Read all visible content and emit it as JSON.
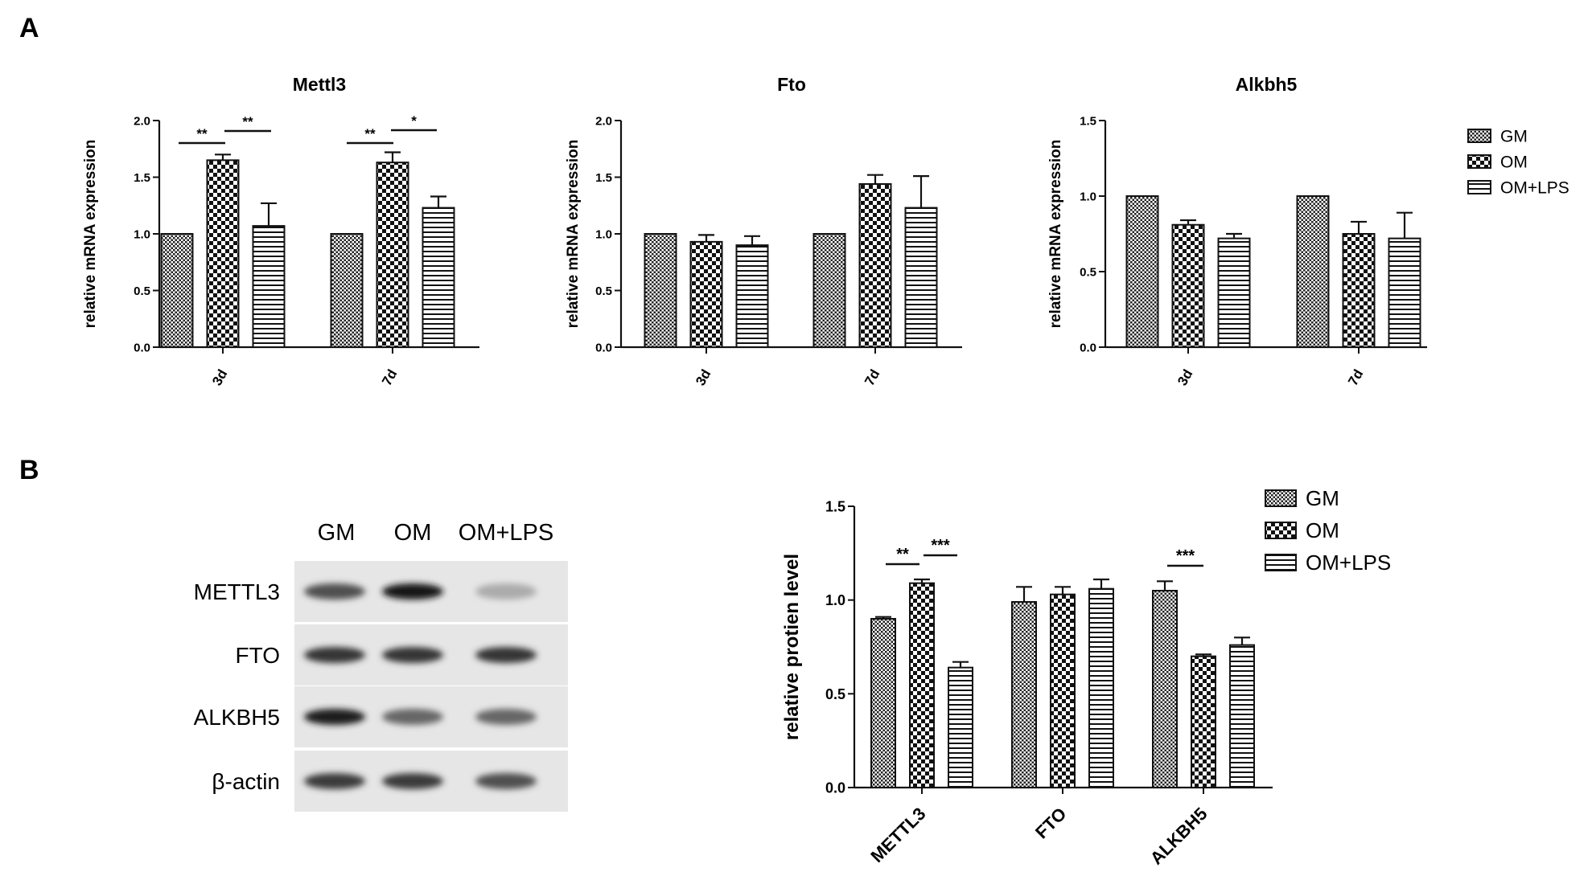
{
  "panel_labels": [
    "A",
    "B"
  ],
  "colors": {
    "ink": "#111111",
    "background": "#ffffff",
    "blot_bg": "#e6e6e6"
  },
  "legend": [
    "GM",
    "OM",
    "OM+LPS"
  ],
  "significance_marks": {
    "mettl3_3d": [
      "**",
      "**"
    ],
    "mettl3_7d": [
      "**",
      "*"
    ],
    "protein_METTL3": [
      "**",
      "***"
    ],
    "protein_ALKBH5": [
      "***"
    ]
  },
  "western_blot": {
    "lanes": [
      "GM",
      "OM",
      "OM+LPS"
    ],
    "rows": [
      {
        "label": "METTL3",
        "intensity": [
          0.72,
          1.0,
          0.3
        ]
      },
      {
        "label": "FTO",
        "intensity": [
          0.85,
          0.85,
          0.85
        ]
      },
      {
        "label": "ALKBH5",
        "intensity": [
          0.95,
          0.62,
          0.62
        ]
      },
      {
        "label": "β-actin",
        "intensity": [
          0.82,
          0.82,
          0.72
        ]
      }
    ]
  },
  "chart_data": [
    {
      "type": "bar",
      "title": "Mettl3",
      "xlabel": "",
      "ylabel": "relative mRNA expression",
      "ylim": [
        0,
        2.0
      ],
      "yticks": [
        "0.0",
        "0.5",
        "1.0",
        "1.5",
        "2.0"
      ],
      "categories": [
        "3d",
        "7d"
      ],
      "series": [
        {
          "name": "GM",
          "values": [
            1.0,
            1.0
          ],
          "errors": [
            0,
            0
          ]
        },
        {
          "name": "OM",
          "values": [
            1.65,
            1.63
          ],
          "errors": [
            0.05,
            0.09
          ]
        },
        {
          "name": "OM+LPS",
          "values": [
            1.07,
            1.23
          ],
          "errors": [
            0.2,
            0.1
          ]
        }
      ]
    },
    {
      "type": "bar",
      "title": "Fto",
      "xlabel": "",
      "ylabel": "relative mRNA expression",
      "ylim": [
        0,
        2.0
      ],
      "yticks": [
        "0.0",
        "0.5",
        "1.0",
        "1.5",
        "2.0"
      ],
      "categories": [
        "3d",
        "7d"
      ],
      "series": [
        {
          "name": "GM",
          "values": [
            1.0,
            1.0
          ],
          "errors": [
            0,
            0
          ]
        },
        {
          "name": "OM",
          "values": [
            0.93,
            1.44
          ],
          "errors": [
            0.06,
            0.08
          ]
        },
        {
          "name": "OM+LPS",
          "values": [
            0.9,
            1.23
          ],
          "errors": [
            0.08,
            0.28
          ]
        }
      ]
    },
    {
      "type": "bar",
      "title": "Alkbh5",
      "xlabel": "",
      "ylabel": "relative mRNA expression",
      "ylim": [
        0,
        1.5
      ],
      "yticks": [
        "0.0",
        "0.5",
        "1.0",
        "1.5"
      ],
      "categories": [
        "3d",
        "7d"
      ],
      "series": [
        {
          "name": "GM",
          "values": [
            1.0,
            1.0
          ],
          "errors": [
            0,
            0
          ]
        },
        {
          "name": "OM",
          "values": [
            0.81,
            0.75
          ],
          "errors": [
            0.03,
            0.08
          ]
        },
        {
          "name": "OM+LPS",
          "values": [
            0.72,
            0.72
          ],
          "errors": [
            0.03,
            0.17
          ]
        }
      ]
    },
    {
      "type": "bar",
      "title": "",
      "xlabel": "",
      "ylabel": "relative protien level",
      "ylim": [
        0,
        1.5
      ],
      "yticks": [
        "0.0",
        "0.5",
        "1.0",
        "1.5"
      ],
      "categories": [
        "METTL3",
        "FTO",
        "ALKBH5"
      ],
      "series": [
        {
          "name": "GM",
          "values": [
            0.9,
            0.99,
            1.05
          ],
          "errors": [
            0.01,
            0.08,
            0.05
          ]
        },
        {
          "name": "OM",
          "values": [
            1.09,
            1.03,
            0.7
          ],
          "errors": [
            0.02,
            0.04,
            0.01
          ]
        },
        {
          "name": "OM+LPS",
          "values": [
            0.64,
            1.06,
            0.76
          ],
          "errors": [
            0.03,
            0.05,
            0.04
          ]
        }
      ]
    }
  ]
}
